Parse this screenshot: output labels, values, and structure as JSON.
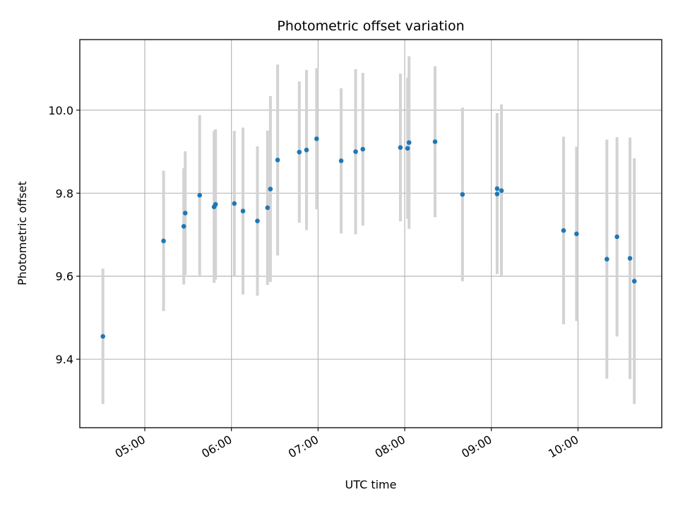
{
  "chart_data": {
    "type": "scatter",
    "title": "Photometric offset variation",
    "xlabel": "UTC time",
    "ylabel": "Photometric offset",
    "x_ticks": [
      "05:00",
      "06:00",
      "07:00",
      "08:00",
      "09:00",
      "10:00"
    ],
    "y_ticks": [
      "9.4",
      "9.6",
      "9.8",
      "10.0"
    ],
    "xlim": [
      "04:15",
      "10:58"
    ],
    "ylim": [
      9.235,
      10.17
    ],
    "grid": true,
    "colors": {
      "point": "#1f77b4",
      "errorbar": "#d3d3d3",
      "grid": "#b0b0b0"
    },
    "series": [
      {
        "points": [
          {
            "x": "04:31",
            "y": 9.455,
            "yerr": 0.163
          },
          {
            "x": "05:13",
            "y": 9.685,
            "yerr": 0.169
          },
          {
            "x": "05:27",
            "y": 9.72,
            "yerr": 0.14
          },
          {
            "x": "05:28",
            "y": 9.752,
            "yerr": 0.149
          },
          {
            "x": "05:38",
            "y": 9.795,
            "yerr": 0.193
          },
          {
            "x": "05:48",
            "y": 9.767,
            "yerr": 0.183
          },
          {
            "x": "05:49",
            "y": 9.773,
            "yerr": 0.181
          },
          {
            "x": "06:02",
            "y": 9.775,
            "yerr": 0.175
          },
          {
            "x": "06:08",
            "y": 9.757,
            "yerr": 0.201
          },
          {
            "x": "06:18",
            "y": 9.733,
            "yerr": 0.18
          },
          {
            "x": "06:25",
            "y": 9.765,
            "yerr": 0.186
          },
          {
            "x": "06:27",
            "y": 9.81,
            "yerr": 0.224
          },
          {
            "x": "06:32",
            "y": 9.88,
            "yerr": 0.23
          },
          {
            "x": "06:47",
            "y": 9.899,
            "yerr": 0.17
          },
          {
            "x": "06:52",
            "y": 9.904,
            "yerr": 0.193
          },
          {
            "x": "06:59",
            "y": 9.931,
            "yerr": 0.17
          },
          {
            "x": "07:16",
            "y": 9.878,
            "yerr": 0.175
          },
          {
            "x": "07:26",
            "y": 9.9,
            "yerr": 0.199
          },
          {
            "x": "07:31",
            "y": 9.906,
            "yerr": 0.184
          },
          {
            "x": "07:57",
            "y": 9.91,
            "yerr": 0.178
          },
          {
            "x": "08:02",
            "y": 9.908,
            "yerr": 0.17
          },
          {
            "x": "08:03",
            "y": 9.922,
            "yerr": 0.208
          },
          {
            "x": "08:21",
            "y": 9.924,
            "yerr": 0.182
          },
          {
            "x": "08:40",
            "y": 9.797,
            "yerr": 0.209
          },
          {
            "x": "09:04",
            "y": 9.798,
            "yerr": 0.193
          },
          {
            "x": "09:04",
            "y": 9.811,
            "yerr": 0.182
          },
          {
            "x": "09:07",
            "y": 9.806,
            "yerr": 0.208
          },
          {
            "x": "09:50",
            "y": 9.71,
            "yerr": 0.226
          },
          {
            "x": "09:59",
            "y": 9.702,
            "yerr": 0.21
          },
          {
            "x": "10:20",
            "y": 9.641,
            "yerr": 0.288
          },
          {
            "x": "10:27",
            "y": 9.695,
            "yerr": 0.24
          },
          {
            "x": "10:36",
            "y": 9.643,
            "yerr": 0.291
          },
          {
            "x": "10:39",
            "y": 9.588,
            "yerr": 0.296
          }
        ]
      }
    ]
  }
}
